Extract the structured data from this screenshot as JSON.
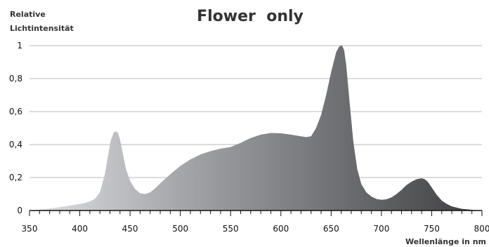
{
  "chart_data": {
    "type": "area",
    "title": "Flower  only",
    "ylabel_lines": [
      "Relative",
      "Lichtintensität"
    ],
    "xlabel": "Wellenlänge in nm",
    "xlim": [
      350,
      800
    ],
    "ylim": [
      0,
      1
    ],
    "x_ticks": [
      350,
      400,
      450,
      500,
      550,
      600,
      650,
      700,
      750,
      800
    ],
    "y_ticks": [
      0,
      0.2,
      0.4,
      0.6,
      0.8,
      1
    ],
    "y_tick_labels": [
      "0",
      "0,2",
      "0,4",
      "0,6",
      "0,8",
      "1"
    ],
    "grid": true,
    "gradient_colors": [
      "#e0e1e4",
      "#a4a6aa",
      "#707275",
      "#3e3e40"
    ],
    "series": [
      {
        "x": [
          350,
          360,
          370,
          380,
          390,
          400,
          405,
          410,
          415,
          420,
          425,
          428,
          431,
          434,
          436,
          438,
          440,
          443,
          446,
          450,
          455,
          460,
          465,
          470,
          475,
          480,
          490,
          500,
          510,
          520,
          530,
          540,
          550,
          560,
          570,
          580,
          590,
          600,
          610,
          620,
          625,
          630,
          635,
          640,
          645,
          650,
          655,
          658,
          661,
          663,
          665,
          668,
          672,
          676,
          680,
          685,
          690,
          695,
          700,
          705,
          710,
          715,
          720,
          725,
          730,
          735,
          740,
          743,
          746,
          750,
          755,
          760,
          765,
          770,
          780,
          790,
          795,
          800
        ],
        "y": [
          0.0,
          0.005,
          0.012,
          0.02,
          0.03,
          0.04,
          0.045,
          0.055,
          0.07,
          0.11,
          0.22,
          0.33,
          0.43,
          0.475,
          0.48,
          0.47,
          0.43,
          0.34,
          0.25,
          0.18,
          0.13,
          0.105,
          0.1,
          0.11,
          0.135,
          0.165,
          0.22,
          0.27,
          0.31,
          0.34,
          0.36,
          0.375,
          0.385,
          0.41,
          0.44,
          0.46,
          0.47,
          0.468,
          0.46,
          0.45,
          0.445,
          0.45,
          0.5,
          0.58,
          0.7,
          0.84,
          0.96,
          0.995,
          1.0,
          0.97,
          0.88,
          0.68,
          0.42,
          0.25,
          0.16,
          0.11,
          0.085,
          0.07,
          0.065,
          0.068,
          0.08,
          0.1,
          0.125,
          0.155,
          0.175,
          0.19,
          0.195,
          0.19,
          0.175,
          0.14,
          0.095,
          0.06,
          0.04,
          0.025,
          0.01,
          0.004,
          0.002,
          0.0
        ]
      }
    ]
  }
}
